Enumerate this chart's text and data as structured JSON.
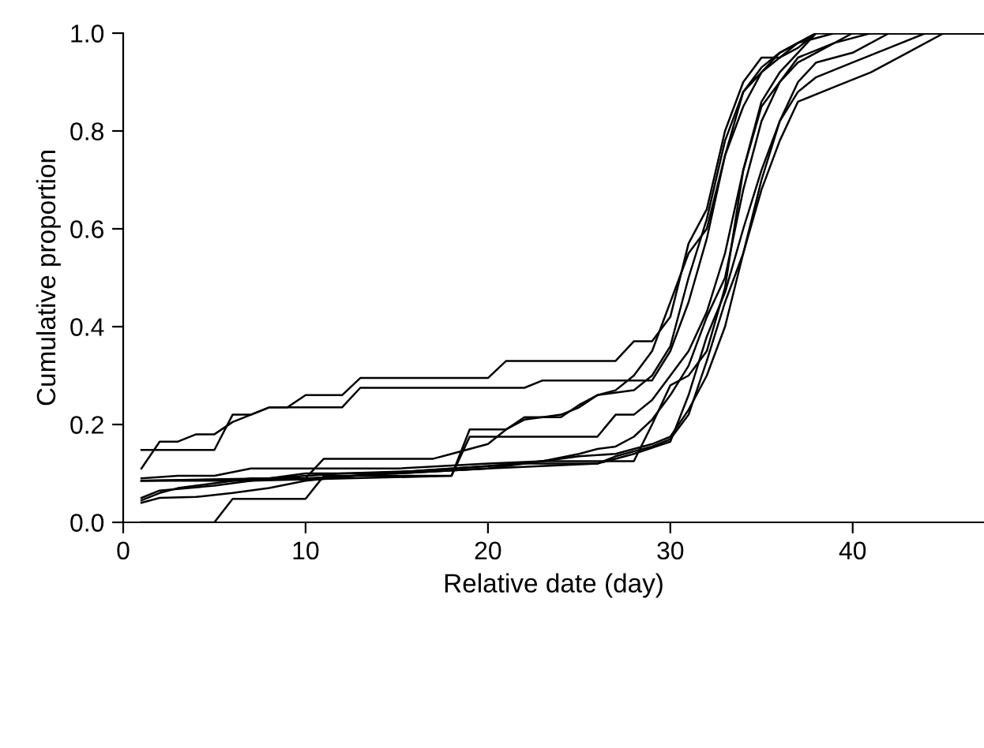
{
  "chart_data": {
    "type": "line",
    "xlabel": "Relative date (day)",
    "ylabel": "Cumulative proportion",
    "xlim": [
      0,
      47.2
    ],
    "ylim": [
      0,
      1.0
    ],
    "xticks": [
      0,
      10,
      20,
      30,
      40
    ],
    "yticks": [
      {
        "value": 0,
        "label": "0.0"
      },
      {
        "value": 0.2,
        "label": "0.2"
      },
      {
        "value": 0.4,
        "label": "0.4"
      },
      {
        "value": 0.6,
        "label": "0.6"
      },
      {
        "value": 0.8,
        "label": "0.8"
      },
      {
        "value": 1.0,
        "label": "1.0"
      }
    ],
    "grid": false,
    "marker": "none",
    "line_style": "solid",
    "series": [
      {
        "color": "#000000",
        "x": [
          1,
          2,
          3,
          4,
          5,
          6,
          7,
          8,
          9,
          10,
          12,
          13,
          20,
          21,
          27,
          28,
          29,
          30,
          31,
          32,
          33,
          34,
          35,
          36,
          37,
          38,
          47.2
        ],
        "values": [
          0.11,
          0.165,
          0.165,
          0.18,
          0.18,
          0.205,
          0.22,
          0.235,
          0.235,
          0.26,
          0.26,
          0.295,
          0.295,
          0.33,
          0.33,
          0.37,
          0.37,
          0.42,
          0.57,
          0.64,
          0.8,
          0.9,
          0.95,
          0.95,
          0.98,
          1.0,
          1.0
        ]
      },
      {
        "color": "#000000",
        "x": [
          1,
          5,
          6,
          7,
          8,
          12,
          13,
          22,
          23,
          29,
          30,
          31,
          32,
          33,
          34,
          35,
          36,
          37,
          38,
          47.2
        ],
        "values": [
          0.148,
          0.148,
          0.22,
          0.22,
          0.235,
          0.235,
          0.275,
          0.275,
          0.29,
          0.29,
          0.35,
          0.45,
          0.58,
          0.75,
          0.88,
          0.93,
          0.96,
          0.98,
          1.0,
          1.0
        ]
      },
      {
        "color": "#000000",
        "x": [
          1,
          5,
          6,
          10,
          11,
          18,
          19,
          21,
          22,
          24,
          25,
          26,
          28,
          29,
          30,
          31,
          32,
          33,
          34,
          35,
          36,
          37,
          38,
          47.2
        ],
        "values": [
          0.0,
          0.0,
          0.048,
          0.048,
          0.095,
          0.095,
          0.19,
          0.19,
          0.215,
          0.215,
          0.24,
          0.26,
          0.27,
          0.3,
          0.36,
          0.5,
          0.62,
          0.78,
          0.88,
          0.92,
          0.95,
          0.97,
          1.0,
          1.0
        ]
      },
      {
        "color": "#000000",
        "x": [
          1,
          2,
          3,
          5,
          7,
          10,
          11,
          17,
          18,
          20,
          21,
          22,
          23,
          24,
          25,
          26,
          27,
          28,
          29,
          30,
          31,
          32,
          33,
          34,
          35,
          36,
          37,
          38,
          39,
          47.2
        ],
        "values": [
          0.045,
          0.06,
          0.07,
          0.08,
          0.09,
          0.09,
          0.13,
          0.13,
          0.14,
          0.16,
          0.19,
          0.21,
          0.215,
          0.22,
          0.235,
          0.26,
          0.27,
          0.3,
          0.35,
          0.45,
          0.55,
          0.6,
          0.75,
          0.85,
          0.92,
          0.96,
          0.98,
          0.99,
          1.0,
          1.0
        ]
      },
      {
        "color": "#000000",
        "x": [
          1,
          7,
          18,
          19,
          22,
          23,
          26,
          27,
          28,
          29,
          30,
          31,
          32,
          33,
          34,
          35,
          36,
          37,
          38,
          47.2
        ],
        "values": [
          0.085,
          0.085,
          0.095,
          0.175,
          0.175,
          0.175,
          0.175,
          0.22,
          0.22,
          0.25,
          0.3,
          0.35,
          0.43,
          0.55,
          0.72,
          0.86,
          0.92,
          0.96,
          1.0,
          1.0
        ]
      },
      {
        "color": "#000000",
        "x": [
          1,
          3,
          5,
          7,
          10,
          15,
          20,
          23,
          25,
          28,
          29,
          30,
          31,
          32,
          33,
          34,
          35,
          36,
          37,
          38,
          40,
          47.2
        ],
        "values": [
          0.09,
          0.095,
          0.095,
          0.11,
          0.11,
          0.11,
          0.12,
          0.125,
          0.125,
          0.125,
          0.2,
          0.28,
          0.3,
          0.35,
          0.48,
          0.72,
          0.85,
          0.9,
          0.94,
          0.96,
          1.0,
          1.0
        ]
      },
      {
        "color": "#000000",
        "x": [
          1,
          2,
          5,
          8,
          12,
          16,
          20,
          23,
          25,
          26,
          27,
          28,
          29,
          30,
          31,
          32,
          33,
          34,
          35,
          36,
          37,
          39,
          41,
          47.2
        ],
        "values": [
          0.05,
          0.065,
          0.075,
          0.09,
          0.1,
          0.105,
          0.115,
          0.125,
          0.14,
          0.15,
          0.155,
          0.175,
          0.21,
          0.26,
          0.32,
          0.42,
          0.5,
          0.68,
          0.82,
          0.9,
          0.95,
          0.98,
          1.0,
          1.0
        ]
      },
      {
        "color": "#000000",
        "x": [
          1,
          2,
          4,
          6,
          8,
          10,
          14,
          18,
          22,
          25,
          27,
          28,
          29,
          30,
          31,
          32,
          33,
          34,
          35,
          36,
          37,
          38,
          40,
          42,
          47.2
        ],
        "values": [
          0.04,
          0.05,
          0.052,
          0.06,
          0.07,
          0.085,
          0.1,
          0.11,
          0.12,
          0.135,
          0.14,
          0.15,
          0.16,
          0.175,
          0.23,
          0.3,
          0.4,
          0.55,
          0.7,
          0.82,
          0.9,
          0.94,
          0.96,
          1.0,
          1.0
        ]
      },
      {
        "color": "#000000",
        "x": [
          1,
          10,
          15,
          20,
          26,
          28,
          30,
          31,
          32,
          33,
          34,
          35,
          36,
          37,
          38,
          40,
          42,
          44,
          47.2
        ],
        "values": [
          0.085,
          0.09,
          0.1,
          0.11,
          0.12,
          0.14,
          0.165,
          0.26,
          0.38,
          0.47,
          0.6,
          0.72,
          0.82,
          0.88,
          0.91,
          0.94,
          0.97,
          1.0,
          1.0
        ]
      },
      {
        "color": "#000000",
        "x": [
          1,
          8,
          10,
          15,
          20,
          22,
          26,
          27,
          29,
          30,
          31,
          32,
          33,
          34,
          35,
          36,
          37,
          39,
          41,
          43,
          45,
          47.2
        ],
        "values": [
          0.085,
          0.09,
          0.1,
          0.1,
          0.11,
          0.12,
          0.12,
          0.135,
          0.155,
          0.17,
          0.22,
          0.33,
          0.45,
          0.55,
          0.68,
          0.78,
          0.86,
          0.89,
          0.92,
          0.96,
          1.0,
          1.0
        ]
      }
    ]
  }
}
